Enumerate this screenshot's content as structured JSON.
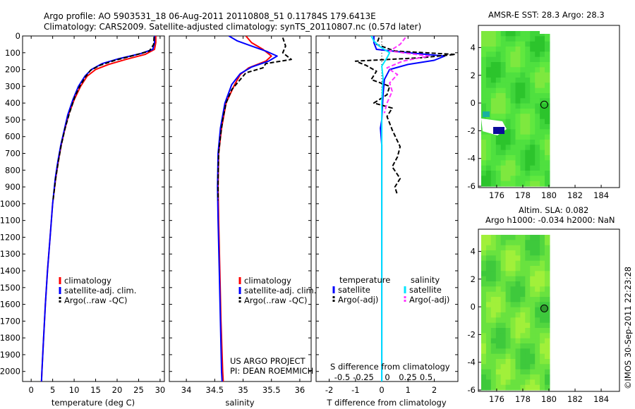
{
  "header": {
    "line1": "Argo profile: AO 5903531_18 06-Aug-2011 20110808_51 0.11784S 179.6413E",
    "line2": "Climatology: CARS2009. Satellite-adjusted climatology: synTS_20110807.nc (0.57d later)"
  },
  "colors": {
    "climatology": "#ff0000",
    "satellite": "#0000ff",
    "argo": "#000000",
    "temp_satellite_diff": "#00e5ff",
    "salt_argo_diff": "#ff33ff"
  },
  "chart_data": [
    {
      "type": "line",
      "panel": "temperature",
      "xlabel": "temperature (deg C)",
      "ylabel": "",
      "xlim": [
        -2,
        31
      ],
      "ylim": [
        2060,
        0
      ],
      "xticks": [
        "0",
        "5",
        "10",
        "15",
        "20",
        "25",
        "30"
      ],
      "xtick_values": [
        0,
        5,
        10,
        15,
        20,
        25,
        30
      ],
      "yticks": [
        "0",
        "100",
        "200",
        "300",
        "400",
        "500",
        "600",
        "700",
        "800",
        "900",
        "1000",
        "1100",
        "1200",
        "1300",
        "1400",
        "1500",
        "1600",
        "1700",
        "1800",
        "1900",
        "2000"
      ],
      "ytick_values": [
        0,
        100,
        200,
        300,
        400,
        500,
        600,
        700,
        800,
        900,
        1000,
        1100,
        1200,
        1300,
        1400,
        1500,
        1600,
        1700,
        1800,
        1900,
        2000
      ],
      "legend": [
        "climatology",
        "satellite-adj. clim.",
        "Argo(..raw -QC)"
      ],
      "series": [
        {
          "name": "climatology",
          "color": "#ff0000",
          "style": "solid",
          "points": [
            [
              29.0,
              0
            ],
            [
              29.0,
              40
            ],
            [
              28.7,
              80
            ],
            [
              26.5,
              110
            ],
            [
              22.0,
              140
            ],
            [
              18.0,
              170
            ],
            [
              15.0,
              200
            ],
            [
              13.0,
              240
            ],
            [
              11.5,
              300
            ],
            [
              10.0,
              380
            ],
            [
              8.7,
              470
            ],
            [
              7.8,
              560
            ],
            [
              7.0,
              650
            ],
            [
              6.3,
              750
            ],
            [
              5.7,
              850
            ],
            [
              5.0,
              1000
            ],
            [
              4.4,
              1200
            ],
            [
              3.8,
              1400
            ],
            [
              3.3,
              1600
            ],
            [
              2.9,
              1800
            ],
            [
              2.5,
              2000
            ],
            [
              2.4,
              2060
            ]
          ]
        },
        {
          "name": "satellite-adj. clim.",
          "color": "#0000ff",
          "style": "solid",
          "points": [
            [
              28.7,
              0
            ],
            [
              28.7,
              40
            ],
            [
              28.3,
              80
            ],
            [
              25.5,
              105
            ],
            [
              20.5,
              135
            ],
            [
              16.5,
              165
            ],
            [
              14.0,
              200
            ],
            [
              12.5,
              240
            ],
            [
              11.0,
              300
            ],
            [
              9.7,
              380
            ],
            [
              8.5,
              470
            ],
            [
              7.7,
              560
            ],
            [
              6.9,
              650
            ],
            [
              6.2,
              750
            ],
            [
              5.6,
              850
            ],
            [
              5.0,
              1000
            ],
            [
              4.4,
              1200
            ],
            [
              3.8,
              1400
            ],
            [
              3.3,
              1600
            ],
            [
              2.9,
              1800
            ],
            [
              2.5,
              2000
            ],
            [
              2.4,
              2060
            ]
          ]
        },
        {
          "name": "Argo(..raw -QC)",
          "color": "#000000",
          "style": "dashed",
          "points": [
            [
              28.6,
              5
            ],
            [
              28.5,
              50
            ],
            [
              27.5,
              90
            ],
            [
              24.0,
              115
            ],
            [
              19.5,
              145
            ],
            [
              16.0,
              175
            ],
            [
              13.8,
              205
            ],
            [
              12.6,
              245
            ],
            [
              11.3,
              300
            ],
            [
              10.2,
              360
            ],
            [
              8.9,
              460
            ],
            [
              7.9,
              550
            ],
            [
              7.0,
              650
            ],
            [
              6.3,
              750
            ],
            [
              5.7,
              850
            ],
            [
              5.1,
              980
            ]
          ]
        }
      ]
    },
    {
      "type": "line",
      "panel": "salinity",
      "xlabel": "salinity",
      "ylabel": "",
      "xlim": [
        33.7,
        36.2
      ],
      "ylim": [
        2060,
        0
      ],
      "xticks": [
        "34",
        "34.5",
        "35",
        "35.5",
        "36"
      ],
      "xtick_values": [
        34,
        34.5,
        35,
        35.5,
        36
      ],
      "legend": [
        "climatology",
        "satellite-adj. clim.",
        "Argo(..raw -QC)"
      ],
      "annotations": [
        "US ARGO PROJECT",
        "PI: DEAN ROEMMICH"
      ],
      "series": [
        {
          "name": "climatology",
          "color": "#ff0000",
          "style": "solid",
          "points": [
            [
              35.05,
              0
            ],
            [
              35.15,
              40
            ],
            [
              35.35,
              80
            ],
            [
              35.5,
              120
            ],
            [
              35.4,
              150
            ],
            [
              35.1,
              190
            ],
            [
              34.95,
              230
            ],
            [
              34.85,
              290
            ],
            [
              34.7,
              400
            ],
            [
              34.62,
              550
            ],
            [
              34.57,
              700
            ],
            [
              34.56,
              900
            ],
            [
              34.57,
              1100
            ],
            [
              34.59,
              1400
            ],
            [
              34.61,
              1700
            ],
            [
              34.64,
              2000
            ],
            [
              34.65,
              2060
            ]
          ]
        },
        {
          "name": "satellite-adj. clim.",
          "color": "#0000ff",
          "style": "solid",
          "points": [
            [
              34.75,
              0
            ],
            [
              34.9,
              30
            ],
            [
              35.15,
              60
            ],
            [
              35.4,
              90
            ],
            [
              35.6,
              120
            ],
            [
              35.45,
              150
            ],
            [
              35.15,
              185
            ],
            [
              34.95,
              225
            ],
            [
              34.8,
              290
            ],
            [
              34.68,
              400
            ],
            [
              34.6,
              550
            ],
            [
              34.56,
              700
            ],
            [
              34.55,
              900
            ],
            [
              34.56,
              1100
            ],
            [
              34.58,
              1400
            ],
            [
              34.6,
              1700
            ],
            [
              34.62,
              2000
            ],
            [
              34.63,
              2060
            ]
          ]
        },
        {
          "name": "Argo(..raw -QC)",
          "color": "#000000",
          "style": "dashed",
          "points": [
            [
              35.7,
              10
            ],
            [
              35.75,
              60
            ],
            [
              35.7,
              100
            ],
            [
              35.85,
              140
            ],
            [
              35.4,
              165
            ],
            [
              35.35,
              190
            ],
            [
              35.05,
              220
            ],
            [
              34.95,
              260
            ],
            [
              34.8,
              320
            ],
            [
              34.7,
              400
            ],
            [
              34.64,
              500
            ],
            [
              34.6,
              600
            ],
            [
              34.57,
              700
            ],
            [
              34.56,
              850
            ],
            [
              34.56,
              980
            ]
          ]
        }
      ]
    },
    {
      "type": "line",
      "panel": "differences",
      "xlabel": "T difference from climatology",
      "ylabel": "",
      "xlim": [
        -2.5,
        2.9
      ],
      "ylim": [
        2060,
        0
      ],
      "xticks": [
        "-2",
        "-1",
        "0",
        "1",
        "2"
      ],
      "xtick_values": [
        -2,
        -1,
        0,
        1,
        2
      ],
      "secondary_xlabel": "S difference from climatology",
      "secondary_xticks": [
        "-0.5",
        "-0.25",
        "0",
        "0.25",
        "0.5"
      ],
      "legend_headers": [
        "temperature",
        "salinity"
      ],
      "legend": [
        "satellite",
        "Argo(-adj)",
        "satellite",
        "Argo(-adj)"
      ],
      "series": [
        {
          "name": "satellite",
          "quantity": "temperature",
          "color": "#0000ff",
          "style": "solid",
          "points": [
            [
              -0.3,
              0
            ],
            [
              -0.3,
              40
            ],
            [
              -0.2,
              80
            ],
            [
              1.0,
              100
            ],
            [
              2.4,
              120
            ],
            [
              2.0,
              145
            ],
            [
              1.0,
              170
            ],
            [
              0.3,
              200
            ],
            [
              0.1,
              260
            ],
            [
              0.05,
              350
            ],
            [
              0.0,
              500
            ],
            [
              -0.05,
              550
            ],
            [
              0.0,
              650
            ],
            [
              0.0,
              1000
            ],
            [
              0.0,
              1500
            ],
            [
              0.0,
              2060
            ]
          ]
        },
        {
          "name": "Argo(-adj)",
          "quantity": "temperature",
          "color": "#000000",
          "style": "dashed",
          "points": [
            [
              -0.1,
              10
            ],
            [
              -0.2,
              50
            ],
            [
              0.5,
              90
            ],
            [
              2.8,
              110
            ],
            [
              1.5,
              130
            ],
            [
              -1.0,
              150
            ],
            [
              -0.6,
              175
            ],
            [
              -0.2,
              210
            ],
            [
              -0.4,
              260
            ],
            [
              0.3,
              300
            ],
            [
              0.2,
              350
            ],
            [
              -0.3,
              400
            ],
            [
              0.4,
              430
            ],
            [
              0.2,
              480
            ],
            [
              0.4,
              560
            ],
            [
              0.7,
              660
            ],
            [
              0.6,
              720
            ],
            [
              0.4,
              780
            ],
            [
              0.7,
              850
            ],
            [
              0.5,
              900
            ],
            [
              0.6,
              950
            ]
          ]
        },
        {
          "name": "satellite",
          "quantity": "salinity",
          "color": "#00e5ff",
          "style": "solid",
          "points": [
            [
              -0.4,
              0
            ],
            [
              -0.3,
              30
            ],
            [
              -0.1,
              60
            ],
            [
              0.3,
              100
            ],
            [
              0.2,
              130
            ],
            [
              0.0,
              180
            ],
            [
              0.05,
              250
            ],
            [
              0.0,
              400
            ],
            [
              0.0,
              700
            ],
            [
              0.0,
              1000
            ],
            [
              0.0,
              1500
            ],
            [
              0.0,
              2060
            ]
          ]
        },
        {
          "name": "Argo(-adj)",
          "quantity": "salinity",
          "color": "#ff33ff",
          "style": "dashed",
          "points": [
            [
              0.9,
              10
            ],
            [
              0.7,
              50
            ],
            [
              0.3,
              90
            ],
            [
              1.8,
              120
            ],
            [
              0.8,
              150
            ],
            [
              0.2,
              190
            ],
            [
              0.6,
              230
            ],
            [
              0.3,
              280
            ],
            [
              0.4,
              330
            ],
            [
              0.2,
              400
            ],
            [
              0.1,
              460
            ]
          ]
        }
      ]
    }
  ],
  "maps": {
    "sst": {
      "title": "AMSR-E SST: 28.3 Argo: 28.3",
      "xticks": [
        "176",
        "178",
        "180",
        "182",
        "184"
      ],
      "yticks": [
        "4",
        "2",
        "0",
        "-2",
        "-4",
        "-6"
      ],
      "xlim": [
        174.6,
        185.4
      ],
      "ylim": [
        -6.1,
        5.6
      ]
    },
    "sla": {
      "title1": "Altim. SLA: 0.082",
      "title2": "Argo h1000: -0.034 h2000: NaN",
      "xticks": [
        "176",
        "178",
        "180",
        "182",
        "184"
      ],
      "yticks": [
        "4",
        "2",
        "0",
        "-2",
        "-4",
        "-6"
      ],
      "xlim": [
        174.6,
        185.4
      ],
      "ylim": [
        -6.1,
        5.6
      ]
    },
    "argo_position": {
      "lon": 179.6413,
      "lat": -0.11784
    }
  },
  "footer": {
    "stamp": "©IMOS 30-Sep-2011 22:23:28"
  }
}
